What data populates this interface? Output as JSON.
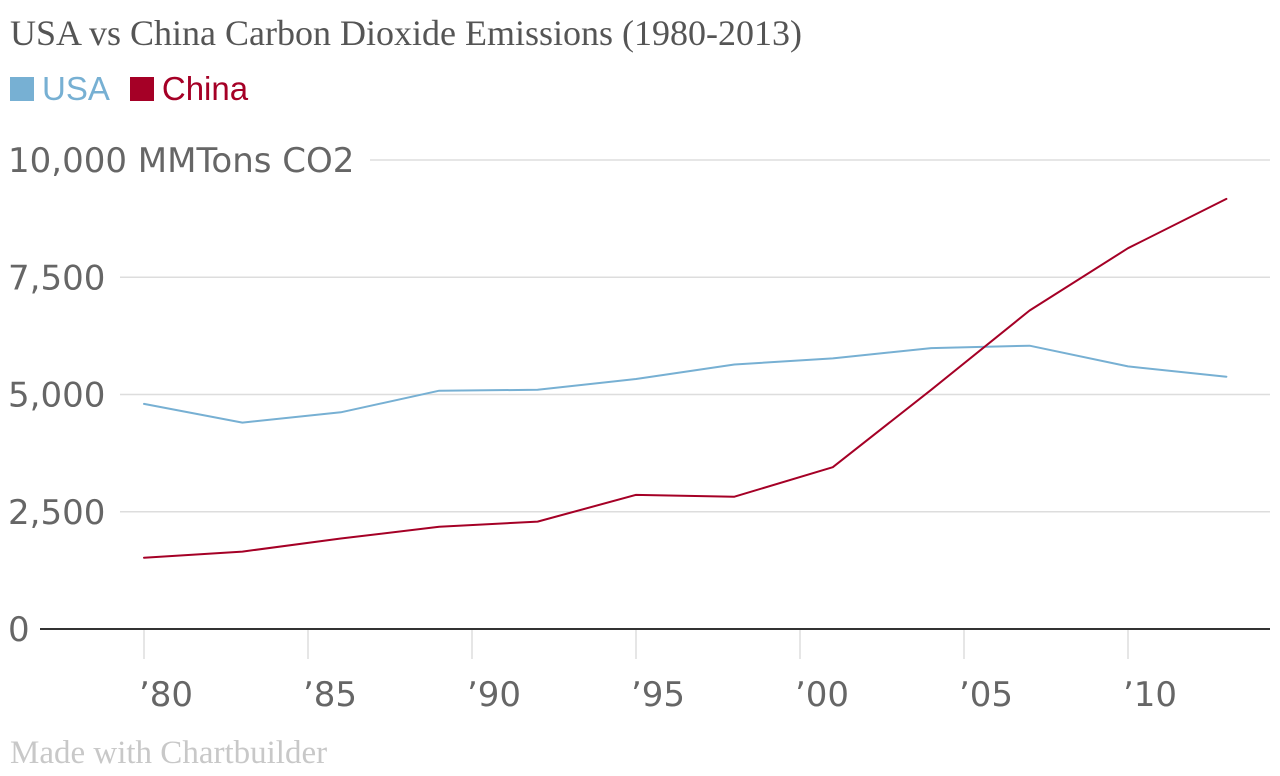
{
  "title": "USA vs China Carbon Dioxide Emissions (1980-2013)",
  "credit": "Made with Chartbuilder",
  "colors": {
    "usa": "#77b0d3",
    "china": "#a50026",
    "grid": "#dddddd",
    "axis": "#333333",
    "text": "#666666"
  },
  "legend": [
    {
      "label": "USA",
      "color": "#77b0d3"
    },
    {
      "label": "China",
      "color": "#a50026"
    }
  ],
  "chart_data": {
    "type": "line",
    "title": "USA vs China Carbon Dioxide Emissions (1980-2013)",
    "ylabel": "MMTons CO2",
    "ylim": [
      0,
      10000
    ],
    "xlim": [
      1980,
      2013
    ],
    "grid": true,
    "legend_position": "top-left",
    "yticks": [
      {
        "value": 0,
        "label": "0"
      },
      {
        "value": 2500,
        "label": "2,500"
      },
      {
        "value": 5000,
        "label": "5,000"
      },
      {
        "value": 7500,
        "label": "7,500"
      },
      {
        "value": 10000,
        "label": "10,000 MMTons CO2"
      }
    ],
    "xticks": [
      {
        "value": 1980,
        "label": "’80"
      },
      {
        "value": 1985,
        "label": "’85"
      },
      {
        "value": 1990,
        "label": "’90"
      },
      {
        "value": 1995,
        "label": "’95"
      },
      {
        "value": 2000,
        "label": "’00"
      },
      {
        "value": 2005,
        "label": "’05"
      },
      {
        "value": 2010,
        "label": "’10"
      }
    ],
    "series": [
      {
        "name": "USA",
        "color": "#77b0d3",
        "points": [
          [
            1980,
            4800
          ],
          [
            1983,
            4400
          ],
          [
            1986,
            4620
          ],
          [
            1989,
            5080
          ],
          [
            1992,
            5100
          ],
          [
            1995,
            5330
          ],
          [
            1998,
            5640
          ],
          [
            2001,
            5770
          ],
          [
            2004,
            5990
          ],
          [
            2007,
            6040
          ],
          [
            2010,
            5600
          ],
          [
            2013,
            5380
          ]
        ]
      },
      {
        "name": "China",
        "color": "#a50026",
        "points": [
          [
            1980,
            1520
          ],
          [
            1983,
            1650
          ],
          [
            1986,
            1930
          ],
          [
            1989,
            2180
          ],
          [
            1992,
            2290
          ],
          [
            1995,
            2860
          ],
          [
            1998,
            2820
          ],
          [
            2001,
            3450
          ],
          [
            2004,
            5100
          ],
          [
            2007,
            6790
          ],
          [
            2010,
            8120
          ],
          [
            2013,
            9170
          ]
        ]
      }
    ]
  }
}
